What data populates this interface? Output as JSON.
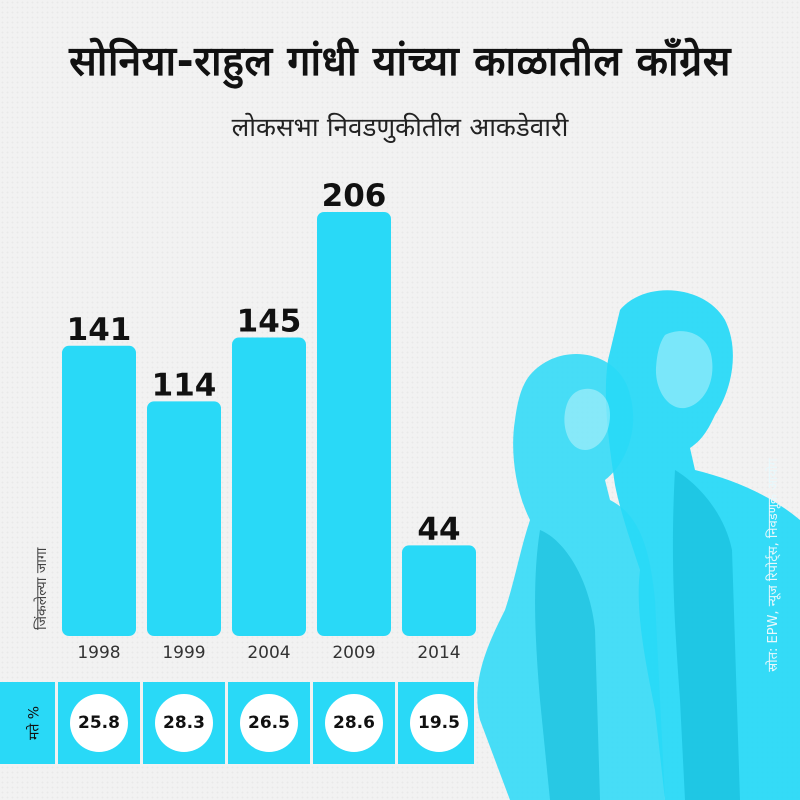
{
  "header": {
    "title": "सोनिया-राहुल गांधी यांच्या काळातील काँग्रेस",
    "subtitle": "लोकसभा निवडणुकीतील आकडेवारी"
  },
  "colors": {
    "accent": "#29d9f7",
    "background": "#f2f2f2",
    "text": "#111111"
  },
  "chart_data": {
    "type": "bar",
    "categories": [
      "1998",
      "1999",
      "2004",
      "2009",
      "2014"
    ],
    "series": [
      {
        "name": "जिंकलेल्या जागा",
        "values": [
          141,
          114,
          145,
          206,
          44
        ]
      }
    ],
    "ylabel": "जिंकलेल्या जागा",
    "ylim": [
      0,
      206
    ],
    "grid": false,
    "vote_share": {
      "label": "मते %",
      "values": [
        25.8,
        28.3,
        26.5,
        28.6,
        19.5
      ]
    }
  },
  "source": "स्रोत: EPW, न्यूज रिपोर्ट्स, निवडणूक आयोग",
  "photo": {
    "icon": "leaders-photo-icon"
  }
}
